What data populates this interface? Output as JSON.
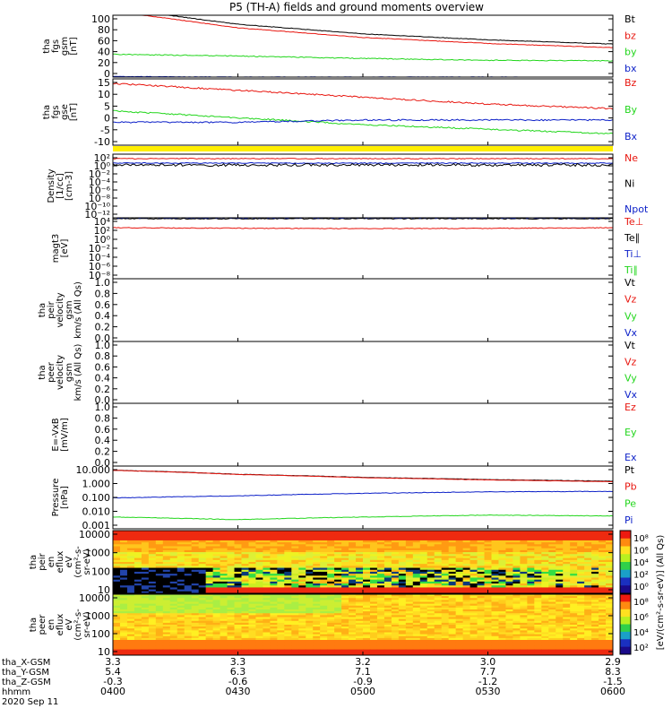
{
  "title": "P5 (TH-A) fields and ground moments overview",
  "colors": {
    "black": "#000000",
    "red": "#e8160f",
    "green": "#22d61c",
    "blue": "#0b1fc8",
    "yellow": "#ffee00"
  },
  "panels": [
    {
      "ylabel": [
        "tha",
        "fgs",
        "gsm",
        "[nT]"
      ],
      "yticks": [
        "100",
        "80",
        "60",
        "40",
        "20",
        "0"
      ],
      "legend": [
        {
          "text": "Bt",
          "color": "black"
        },
        {
          "text": "bz",
          "color": "red"
        },
        {
          "text": "by",
          "color": "green"
        },
        {
          "text": "bx",
          "color": "blue"
        }
      ]
    },
    {
      "ylabel": [
        "tha",
        "fgs",
        "gse",
        "[nT]"
      ],
      "yticks": [
        "15",
        "10",
        "5",
        "0",
        "-5",
        "-10"
      ],
      "legend": [
        {
          "text": "Bz",
          "color": "red"
        },
        {
          "text": "By",
          "color": "green"
        },
        {
          "text": "Bx",
          "color": "blue"
        }
      ]
    },
    {
      "ylabel": [
        "Density",
        "[1/cc]",
        "[cm-3]"
      ],
      "yticks": [
        "10²",
        "10⁰",
        "10⁻²",
        "10⁻⁴",
        "10⁻⁶",
        "10⁻⁸",
        "10⁻¹⁰",
        "10⁻¹²"
      ],
      "legend": [
        {
          "text": "Ne",
          "color": "red"
        },
        {
          "text": "Ni",
          "color": "black"
        },
        {
          "text": "Npot",
          "color": "blue"
        }
      ]
    },
    {
      "ylabel": [
        "magt3",
        "[eV]"
      ],
      "yticks": [
        "10⁴",
        "10²",
        "10⁰",
        "10⁻²",
        "10⁻⁴",
        "10⁻⁶",
        "10⁻⁸"
      ],
      "legend": [
        {
          "text": "Te⊥",
          "color": "red"
        },
        {
          "text": "Te∥",
          "color": "black"
        },
        {
          "text": "Ti⊥",
          "color": "blue"
        },
        {
          "text": "Ti∥",
          "color": "green"
        }
      ]
    },
    {
      "ylabel": [
        "tha",
        "peir",
        "velocity",
        "gsm",
        "km/s (All Qs)"
      ],
      "yticks": [
        "1.0",
        "0.8",
        "0.6",
        "0.4",
        "0.2",
        "0.0"
      ],
      "legend": [
        {
          "text": "Vt",
          "color": "black"
        },
        {
          "text": "Vz",
          "color": "red"
        },
        {
          "text": "Vy",
          "color": "green"
        },
        {
          "text": "Vx",
          "color": "blue"
        }
      ]
    },
    {
      "ylabel": [
        "tha",
        "peer",
        "velocity",
        "gsm",
        "km/s (All Qs)"
      ],
      "yticks": [
        "1.0",
        "0.8",
        "0.6",
        "0.4",
        "0.2",
        "0.0"
      ],
      "legend": [
        {
          "text": "Vt",
          "color": "black"
        },
        {
          "text": "Vz",
          "color": "red"
        },
        {
          "text": "Vy",
          "color": "green"
        },
        {
          "text": "Vx",
          "color": "blue"
        }
      ]
    },
    {
      "ylabel": [
        "E=-VxB",
        "[mV/m]"
      ],
      "yticks": [
        "1.0",
        "0.8",
        "0.6",
        "0.4",
        "0.2",
        "0.0"
      ],
      "legend": [
        {
          "text": "Ez",
          "color": "red"
        },
        {
          "text": "Ey",
          "color": "green"
        },
        {
          "text": "Ex",
          "color": "blue"
        }
      ]
    },
    {
      "ylabel": [
        "Pressure",
        "[nPa]"
      ],
      "yticks": [
        "10.000",
        "1.000",
        "0.100",
        "0.010",
        "0.001"
      ],
      "legend": [
        {
          "text": "Pt",
          "color": "black"
        },
        {
          "text": "Pb",
          "color": "red"
        },
        {
          "text": "Pe",
          "color": "green"
        },
        {
          "text": "Pi",
          "color": "blue"
        }
      ]
    },
    {
      "ylabel": [
        "tha",
        "peir",
        "en",
        "eflux",
        "eV",
        "(cm²-s-",
        "sr-eV)"
      ],
      "yticks": [
        "10000",
        "1000",
        "100",
        "10"
      ],
      "legend": []
    },
    {
      "ylabel": [
        "tha",
        "peer",
        "en",
        "eflux",
        "eV",
        "(cm²-s-",
        "sr-eV)"
      ],
      "yticks": [
        "10000",
        "1000",
        "100",
        "10"
      ],
      "legend": []
    }
  ],
  "colorbar": {
    "label": "[eV/(cm²-s-sr-eV)] (All Qs)",
    "ticks1": [
      "10⁸",
      "10⁶",
      "10⁴",
      "10²",
      "10⁰"
    ],
    "ticks2": [
      "10⁸",
      "10⁶",
      "10⁴",
      "10²"
    ]
  },
  "xaxis": {
    "row_labels": [
      "tha_X-GSM",
      "tha_Y-GSM",
      "tha_Z-GSM",
      "hhmm",
      "2020 Sep 11"
    ],
    "columns": [
      {
        "x": "3.3",
        "y": "5.4",
        "z": "-0.3",
        "t": "0400"
      },
      {
        "x": "3.3",
        "y": "6.3",
        "z": "-0.6",
        "t": "0430"
      },
      {
        "x": "3.2",
        "y": "7.1",
        "z": "-0.9",
        "t": "0500"
      },
      {
        "x": "3.0",
        "y": "7.7",
        "z": "-1.2",
        "t": "0530"
      },
      {
        "x": "2.9",
        "y": "8.3",
        "z": "-1.5",
        "t": "0600"
      }
    ]
  },
  "chart_data": {
    "type": "line",
    "title": "P5 (TH-A) fields and ground moments overview",
    "x": [
      "0400",
      "0430",
      "0500",
      "0530",
      "0600"
    ],
    "series": [
      {
        "name": "Bt",
        "panel": 1,
        "values": [
          115,
          88,
          72,
          62,
          55
        ]
      },
      {
        "name": "bz",
        "panel": 1,
        "values": [
          110,
          82,
          66,
          56,
          49
        ]
      },
      {
        "name": "by",
        "panel": 1,
        "values": [
          38,
          35,
          31,
          28,
          27
        ]
      },
      {
        "name": "bx",
        "panel": 1,
        "values": [
          1,
          0,
          0,
          0,
          -1
        ]
      },
      {
        "name": "Bz",
        "panel": 2,
        "values": [
          14,
          11,
          8,
          5,
          3
        ]
      },
      {
        "name": "By",
        "panel": 2,
        "values": [
          2,
          -1,
          -4,
          -6,
          -8
        ]
      },
      {
        "name": "Bx",
        "panel": 2,
        "values": [
          -3,
          -3,
          -2,
          -2,
          -2
        ]
      },
      {
        "name": "Pt",
        "panel": 8,
        "values": [
          7.5,
          4.0,
          2.5,
          1.8,
          1.4
        ]
      },
      {
        "name": "Pb",
        "panel": 8,
        "values": [
          7.3,
          3.9,
          2.4,
          1.7,
          1.3
        ]
      },
      {
        "name": "Pe",
        "panel": 8,
        "values": [
          0.006,
          0.004,
          0.006,
          0.008,
          0.007
        ]
      },
      {
        "name": "Pi",
        "panel": 8,
        "values": [
          0.11,
          0.15,
          0.22,
          0.28,
          0.3
        ]
      }
    ]
  }
}
